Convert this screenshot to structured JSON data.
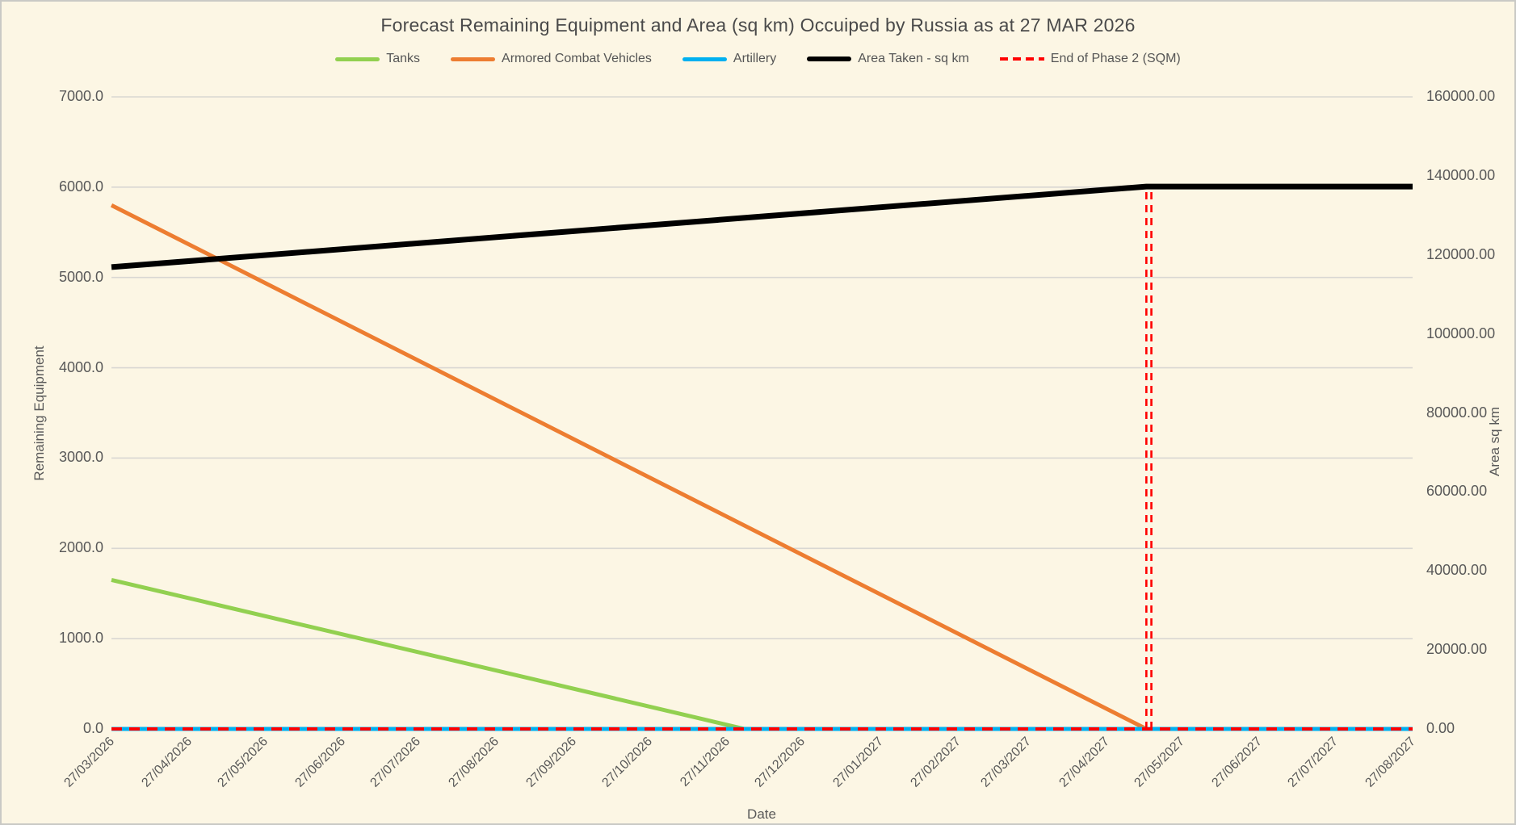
{
  "window": {
    "background_color": "#FCF6E4",
    "border_color": "#C9C9C5",
    "grid_color": "#D9D7D2",
    "text_color": "#595959"
  },
  "chart_data": {
    "type": "line",
    "title": "Forecast Remaining Equipment and Area (sq km) Occuiped by Russia as at 27 MAR 2026",
    "legend_position": "top",
    "grid": "horizontal-only",
    "x_axis": {
      "title": "Date",
      "span_days": 518,
      "labels": [
        "27/03/2026",
        "27/04/2026",
        "27/05/2026",
        "27/06/2026",
        "27/07/2026",
        "27/08/2026",
        "27/09/2026",
        "27/10/2026",
        "27/11/2026",
        "27/12/2026",
        "27/01/2027",
        "27/02/2027",
        "27/03/2027",
        "27/04/2027",
        "27/05/2027",
        "27/06/2027",
        "27/07/2027",
        "27/08/2027"
      ],
      "label_days": [
        0,
        31,
        61,
        92,
        122,
        153,
        184,
        214,
        245,
        275,
        306,
        337,
        365,
        396,
        426,
        457,
        487,
        518
      ]
    },
    "y_left": {
      "title": "Remaining Equipment",
      "min": 0,
      "max": 7000,
      "tick_step": 1000,
      "tick_values": [
        0,
        1000,
        2000,
        3000,
        4000,
        5000,
        6000,
        7000
      ],
      "tick_labels": [
        "0.0",
        "1000.0",
        "2000.0",
        "3000.0",
        "4000.0",
        "5000.0",
        "6000.0",
        "7000.0"
      ]
    },
    "y_right": {
      "title": "Area sq km",
      "min": 0,
      "max": 160000,
      "tick_step": 20000,
      "tick_values": [
        0,
        20000,
        40000,
        60000,
        80000,
        100000,
        120000,
        140000,
        160000
      ],
      "tick_labels": [
        "0.00",
        "20000.00",
        "40000.00",
        "60000.00",
        "80000.00",
        "100000.00",
        "120000.00",
        "140000.00",
        "160000.00"
      ]
    },
    "series": [
      {
        "name": "Tanks",
        "color": "#92D050",
        "axis": "left",
        "style": "solid",
        "width": 5,
        "breakpoints": [
          {
            "date": "27/03/2026",
            "day": 0,
            "value": 1650
          },
          {
            "date": "04/12/2026",
            "day": 252,
            "value": 0
          },
          {
            "date": "27/08/2027",
            "day": 518,
            "value": 0
          }
        ],
        "monthly_values": [
          1650,
          1450,
          1250,
          1050,
          850,
          650,
          450,
          250,
          50,
          0,
          0,
          0,
          0,
          0,
          0,
          0,
          0,
          0
        ]
      },
      {
        "name": "Armored Combat Vehicles",
        "color": "#ED7D31",
        "axis": "left",
        "style": "solid",
        "width": 5,
        "breakpoints": [
          {
            "date": "27/03/2026",
            "day": 0,
            "value": 5800
          },
          {
            "date": "13/05/2027",
            "day": 412,
            "value": 0
          },
          {
            "date": "27/08/2027",
            "day": 518,
            "value": 0
          }
        ],
        "monthly_values": [
          5800,
          5375,
          4950,
          4525,
          4100,
          3675,
          3250,
          2825,
          2400,
          1975,
          1550,
          1125,
          700,
          275,
          0,
          0,
          0,
          0
        ]
      },
      {
        "name": "Artillery",
        "color": "#00B0F0",
        "axis": "left",
        "style": "solid",
        "width": 5,
        "breakpoints": [
          {
            "date": "27/03/2026",
            "day": 0,
            "value": 0
          },
          {
            "date": "27/08/2027",
            "day": 518,
            "value": 0
          }
        ],
        "monthly_values": [
          0,
          0,
          0,
          0,
          0,
          0,
          0,
          0,
          0,
          0,
          0,
          0,
          0,
          0,
          0,
          0,
          0,
          0
        ]
      },
      {
        "name": "Area Taken - sq km",
        "color": "#000000",
        "axis": "right",
        "style": "solid",
        "width": 7,
        "breakpoints": [
          {
            "date": "27/03/2026",
            "day": 0,
            "value": 116900
          },
          {
            "date": "13/05/2027",
            "day": 412,
            "value": 137300
          },
          {
            "date": "27/08/2027",
            "day": 518,
            "value": 137300
          }
        ],
        "monthly_values": [
          116900,
          118400,
          119900,
          121400,
          122900,
          124400,
          125900,
          127400,
          128900,
          130400,
          131900,
          133400,
          134900,
          136400,
          137300,
          137300,
          137300,
          137300
        ]
      },
      {
        "name": "End of Phase 2 (SQM)",
        "color": "#FF0000",
        "axis": "right",
        "style": "dashed",
        "width": 4,
        "breakpoints": [
          {
            "date": "27/03/2026",
            "day": 0,
            "value": 0
          },
          {
            "date": "27/08/2027",
            "day": 518,
            "value": 0
          }
        ],
        "spike": {
          "days": [
            412,
            414
          ],
          "dates": [
            "13/05/2027",
            "15/05/2027"
          ],
          "top_value": 137300
        }
      }
    ]
  }
}
